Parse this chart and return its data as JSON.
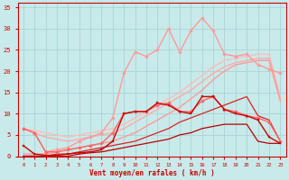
{
  "xlabel": "Vent moyen/en rafales ( km/h )",
  "xlim": [
    -0.5,
    23.5
  ],
  "ylim": [
    0,
    36
  ],
  "yticks": [
    0,
    5,
    10,
    15,
    20,
    25,
    30,
    35
  ],
  "xticks": [
    0,
    1,
    2,
    3,
    4,
    5,
    6,
    7,
    8,
    9,
    10,
    11,
    12,
    13,
    14,
    15,
    16,
    17,
    18,
    19,
    20,
    21,
    22,
    23
  ],
  "bg_color": "#c8eaea",
  "grid_color": "#aad4d4",
  "lines": [
    {
      "x": [
        0,
        1,
        2,
        3,
        4,
        5,
        6,
        7,
        8,
        9,
        10,
        11,
        12,
        13,
        14,
        15,
        16,
        17,
        18,
        19,
        20,
        21,
        22,
        23
      ],
      "y": [
        6.5,
        6.0,
        5.5,
        5.0,
        4.5,
        5.0,
        5.5,
        6.0,
        6.5,
        7.5,
        9.0,
        10.5,
        12.0,
        13.5,
        15.0,
        17.0,
        19.0,
        21.0,
        22.5,
        23.0,
        23.5,
        24.0,
        24.0,
        14.0
      ],
      "color": "#ffbbbb",
      "lw": 1.0,
      "marker": null,
      "ms": 0
    },
    {
      "x": [
        0,
        1,
        2,
        3,
        4,
        5,
        6,
        7,
        8,
        9,
        10,
        11,
        12,
        13,
        14,
        15,
        16,
        17,
        18,
        19,
        20,
        21,
        22,
        23
      ],
      "y": [
        6.5,
        5.5,
        4.5,
        4.0,
        3.5,
        4.0,
        4.5,
        5.0,
        5.5,
        6.5,
        8.0,
        9.5,
        11.0,
        12.5,
        14.0,
        15.5,
        17.5,
        19.5,
        21.0,
        22.0,
        22.5,
        23.0,
        23.0,
        13.5
      ],
      "color": "#ffaaaa",
      "lw": 1.0,
      "marker": null,
      "ms": 0
    },
    {
      "x": [
        0,
        1,
        2,
        3,
        4,
        5,
        6,
        7,
        8,
        9,
        10,
        11,
        12,
        13,
        14,
        15,
        16,
        17,
        18,
        19,
        20,
        21,
        22,
        23
      ],
      "y": [
        0.5,
        0.5,
        0.5,
        1.0,
        1.5,
        2.0,
        2.5,
        3.0,
        3.5,
        4.5,
        5.5,
        7.0,
        8.5,
        10.0,
        11.5,
        13.5,
        15.5,
        18.0,
        20.0,
        21.5,
        22.0,
        22.5,
        22.5,
        13.0
      ],
      "color": "#ff9999",
      "lw": 1.0,
      "marker": null,
      "ms": 0
    },
    {
      "x": [
        0,
        1,
        2,
        3,
        4,
        5,
        6,
        7,
        8,
        9,
        10,
        11,
        12,
        13,
        14,
        15,
        16,
        17,
        18,
        19,
        20,
        21,
        22,
        23
      ],
      "y": [
        0,
        0,
        0,
        0.5,
        0.5,
        1.0,
        1.5,
        2.0,
        2.5,
        3.0,
        3.5,
        4.5,
        5.5,
        6.5,
        8.0,
        9.0,
        10.0,
        11.0,
        12.0,
        13.0,
        14.0,
        9.5,
        8.5,
        3.5
      ],
      "color": "#dd2222",
      "lw": 0.9,
      "marker": null,
      "ms": 0
    },
    {
      "x": [
        0,
        1,
        2,
        3,
        4,
        5,
        6,
        7,
        8,
        9,
        10,
        11,
        12,
        13,
        14,
        15,
        16,
        17,
        18,
        19,
        20,
        21,
        22,
        23
      ],
      "y": [
        0,
        0,
        0,
        0,
        0,
        0.5,
        0.8,
        1.0,
        1.5,
        2.0,
        2.5,
        3.0,
        3.5,
        4.0,
        5.0,
        5.5,
        6.5,
        7.0,
        7.5,
        7.5,
        7.5,
        3.5,
        3.0,
        3.0
      ],
      "color": "#bb0000",
      "lw": 0.9,
      "marker": null,
      "ms": 0
    },
    {
      "x": [
        0,
        1,
        2,
        3,
        4,
        5,
        6,
        7,
        8,
        9,
        10,
        11,
        12,
        13,
        14,
        15,
        16,
        17,
        18,
        19,
        20,
        21,
        22,
        23
      ],
      "y": [
        6.5,
        5.5,
        1.0,
        1.5,
        2.0,
        3.5,
        4.5,
        5.5,
        9.0,
        19.5,
        24.5,
        23.5,
        25.0,
        30.0,
        24.5,
        29.5,
        32.5,
        29.5,
        24.0,
        23.5,
        24.0,
        21.5,
        20.5,
        19.5
      ],
      "color": "#ff9999",
      "lw": 1.0,
      "marker": "D",
      "ms": 2.0
    },
    {
      "x": [
        0,
        1,
        2,
        3,
        4,
        5,
        6,
        7,
        8,
        9,
        10,
        11,
        12,
        13,
        14,
        15,
        16,
        17,
        18,
        19,
        20,
        21,
        22,
        23
      ],
      "y": [
        6.5,
        5.5,
        1.0,
        1.0,
        1.5,
        2.0,
        2.5,
        3.0,
        5.5,
        10.0,
        10.5,
        10.5,
        12.0,
        12.5,
        10.5,
        10.5,
        13.0,
        14.0,
        11.0,
        10.5,
        9.5,
        9.0,
        8.0,
        3.5
      ],
      "color": "#ff6666",
      "lw": 1.0,
      "marker": "D",
      "ms": 2.0
    },
    {
      "x": [
        0,
        1,
        2,
        3,
        4,
        5,
        6,
        7,
        8,
        9,
        10,
        11,
        12,
        13,
        14,
        15,
        16,
        17,
        18,
        19,
        20,
        21,
        22,
        23
      ],
      "y": [
        2.5,
        0.5,
        0.2,
        0.2,
        0.5,
        0.8,
        1.0,
        1.5,
        3.5,
        10.0,
        10.5,
        10.5,
        12.5,
        12.0,
        10.5,
        10.0,
        14.0,
        14.0,
        11.0,
        10.0,
        9.5,
        8.5,
        4.5,
        3.0
      ],
      "color": "#cc0000",
      "lw": 1.0,
      "marker": "s",
      "ms": 1.8
    }
  ]
}
